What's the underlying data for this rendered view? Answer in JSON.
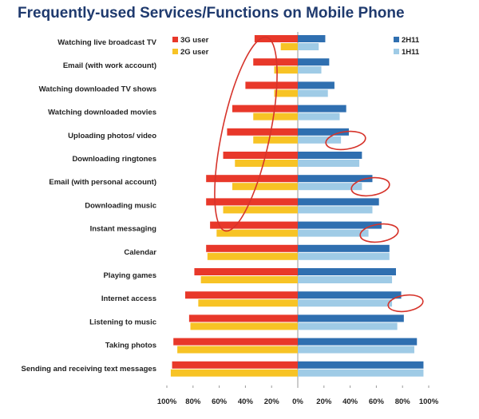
{
  "chart_data": {
    "type": "bar",
    "title": "Frequently-used Services/Functions on Mobile Phone",
    "categories": [
      "Watching live broadcast TV",
      "Email (with work account)",
      "Watching downloaded TV shows",
      "Watching downloaded movies",
      "Uploading photos/ video",
      "Downloading ringtones",
      "Email (with personal account)",
      "Downloading music",
      "Instant messaging",
      "Calendar",
      "Playing games",
      "Internet access",
      "Listening to music",
      "Taking photos",
      "Sending and receiving text messages"
    ],
    "left_panel": {
      "direction": "left",
      "tick_labels": [
        "100%",
        "80%",
        "60%",
        "40%",
        "20%",
        "0%"
      ],
      "series": [
        {
          "name": "3G user",
          "color": "#e8382a",
          "values": [
            33,
            34,
            40,
            50,
            54,
            57,
            70,
            70,
            67,
            70,
            79,
            86,
            83,
            95,
            96
          ]
        },
        {
          "name": "2G user",
          "color": "#f7c325",
          "values": [
            13,
            18,
            18,
            34,
            34,
            48,
            50,
            57,
            62,
            69,
            74,
            76,
            82,
            92,
            97
          ]
        }
      ]
    },
    "right_panel": {
      "direction": "right",
      "tick_labels": [
        "20%",
        "40%",
        "60%",
        "80%",
        "100%"
      ],
      "series": [
        {
          "name": "2H11",
          "color": "#2f6fb0",
          "values": [
            21,
            24,
            28,
            37,
            39,
            49,
            57,
            62,
            64,
            70,
            75,
            79,
            81,
            91,
            96
          ]
        },
        {
          "name": "1H11",
          "color": "#9fcbe6",
          "values": [
            16,
            18,
            23,
            32,
            33,
            47,
            49,
            57,
            54,
            70,
            72,
            72,
            76,
            89,
            96
          ]
        }
      ]
    },
    "xlim": [
      0,
      100
    ],
    "annotations": "red ellipses highlighting selected bars"
  }
}
